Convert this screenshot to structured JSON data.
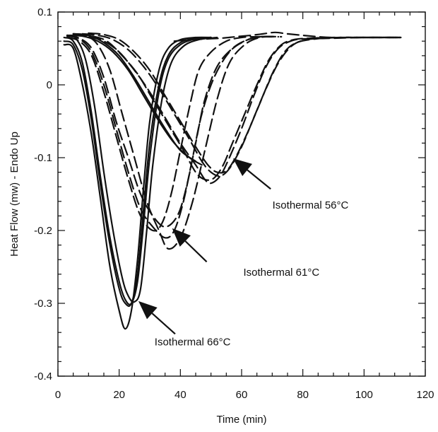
{
  "chart_data": {
    "type": "line",
    "xlabel": "Time (min)",
    "ylabel": "Heat Flow (mw) - Endo Up",
    "xlim": [
      0,
      120
    ],
    "ylim": [
      -0.4,
      0.1
    ],
    "x_ticks": [
      0,
      20,
      40,
      60,
      80,
      100,
      120
    ],
    "y_ticks": [
      0.1,
      0,
      -0.1,
      -0.2,
      -0.3,
      -0.4
    ],
    "x_tick_labels": [
      "0",
      "20",
      "40",
      "60",
      "80",
      "100",
      "120"
    ],
    "y_tick_labels": [
      "0.1",
      "0",
      "-0.1",
      "-0.2",
      "-0.3",
      "-0.4"
    ],
    "grid": false,
    "series": [
      {
        "group": "66",
        "style": "solid",
        "x": [
          2,
          5,
          8,
          11,
          14,
          17,
          20,
          22,
          24,
          26,
          28,
          30,
          33,
          36,
          40,
          45,
          50
        ],
        "y": [
          0.055,
          0.05,
          0.0,
          -0.07,
          -0.16,
          -0.25,
          -0.31,
          -0.335,
          -0.31,
          -0.24,
          -0.14,
          -0.05,
          0.02,
          0.05,
          0.062,
          0.065,
          0.065
        ]
      },
      {
        "group": "66",
        "style": "solid",
        "x": [
          2,
          5,
          8,
          11,
          14,
          17,
          20,
          22,
          24,
          26,
          28,
          30,
          33,
          36,
          40,
          45,
          50
        ],
        "y": [
          0.06,
          0.055,
          0.02,
          -0.05,
          -0.14,
          -0.22,
          -0.28,
          -0.3,
          -0.3,
          -0.26,
          -0.17,
          -0.08,
          0.0,
          0.04,
          0.058,
          0.064,
          0.065
        ]
      },
      {
        "group": "66",
        "style": "solid",
        "x": [
          2,
          5,
          8,
          11,
          14,
          17,
          20,
          22,
          24,
          26,
          28,
          30,
          33,
          36,
          40,
          45,
          50
        ],
        "y": [
          0.065,
          0.06,
          0.03,
          -0.04,
          -0.13,
          -0.21,
          -0.27,
          -0.295,
          -0.3,
          -0.27,
          -0.19,
          -0.1,
          -0.01,
          0.035,
          0.055,
          0.063,
          0.065
        ]
      },
      {
        "group": "66",
        "style": "solid",
        "x": [
          3,
          6,
          9,
          12,
          15,
          18,
          21,
          23,
          25,
          27,
          29,
          31,
          34,
          37,
          41,
          46,
          52
        ],
        "y": [
          0.068,
          0.063,
          0.035,
          -0.03,
          -0.12,
          -0.2,
          -0.265,
          -0.29,
          -0.298,
          -0.28,
          -0.2,
          -0.11,
          -0.02,
          0.03,
          0.053,
          0.062,
          0.065
        ]
      },
      {
        "group": "66-ref",
        "style": "solid",
        "x": [
          3,
          8,
          13,
          18,
          23,
          28,
          33,
          38,
          43,
          47
        ],
        "y": [
          0.068,
          0.067,
          0.06,
          0.045,
          0.02,
          -0.015,
          -0.05,
          -0.08,
          -0.1,
          -0.11
        ]
      },
      {
        "group": "66-ref",
        "style": "solid",
        "x": [
          5,
          10,
          15,
          20,
          25,
          30,
          35,
          40,
          45
        ],
        "y": [
          0.07,
          0.068,
          0.058,
          0.04,
          0.01,
          -0.025,
          -0.06,
          -0.09,
          -0.105
        ]
      },
      {
        "group": "61",
        "style": "dashed",
        "x": [
          3,
          7,
          11,
          15,
          19,
          23,
          27,
          31,
          34,
          37,
          40,
          43,
          46,
          50,
          55,
          60,
          65,
          70
        ],
        "y": [
          0.065,
          0.06,
          0.04,
          -0.01,
          -0.07,
          -0.13,
          -0.18,
          -0.2,
          -0.19,
          -0.15,
          -0.09,
          -0.03,
          0.02,
          0.045,
          0.06,
          0.065,
          0.066,
          0.066
        ]
      },
      {
        "group": "61",
        "style": "dashed",
        "x": [
          3,
          7,
          11,
          15,
          19,
          23,
          27,
          31,
          35,
          38,
          41,
          44,
          47,
          51,
          56,
          61,
          66,
          72
        ],
        "y": [
          0.067,
          0.063,
          0.045,
          0.0,
          -0.06,
          -0.12,
          -0.17,
          -0.195,
          -0.21,
          -0.2,
          -0.16,
          -0.1,
          -0.04,
          0.01,
          0.045,
          0.06,
          0.066,
          0.066
        ]
      },
      {
        "group": "61",
        "style": "dashed",
        "x": [
          3,
          7,
          11,
          15,
          19,
          23,
          27,
          31,
          35,
          39,
          42,
          45,
          48,
          52,
          57,
          62,
          67,
          73
        ],
        "y": [
          0.068,
          0.064,
          0.05,
          0.01,
          -0.05,
          -0.1,
          -0.15,
          -0.18,
          -0.195,
          -0.18,
          -0.14,
          -0.08,
          -0.02,
          0.025,
          0.05,
          0.062,
          0.066,
          0.066
        ]
      },
      {
        "group": "61",
        "style": "dashed",
        "x": [
          5,
          9,
          13,
          17,
          21,
          25,
          29,
          33,
          36,
          40,
          44,
          48,
          52,
          56,
          61,
          66,
          72
        ],
        "y": [
          0.07,
          0.068,
          0.055,
          0.02,
          -0.04,
          -0.1,
          -0.16,
          -0.2,
          -0.225,
          -0.21,
          -0.16,
          -0.09,
          -0.02,
          0.03,
          0.055,
          0.065,
          0.066
        ]
      },
      {
        "group": "56",
        "style": "dashed",
        "x": [
          5,
          10,
          15,
          20,
          25,
          30,
          35,
          40,
          45,
          48,
          50,
          53,
          56,
          60,
          64,
          68,
          72,
          76,
          80,
          90,
          100,
          112
        ],
        "y": [
          0.068,
          0.066,
          0.06,
          0.045,
          0.02,
          -0.01,
          -0.045,
          -0.08,
          -0.11,
          -0.13,
          -0.135,
          -0.125,
          -0.1,
          -0.06,
          -0.015,
          0.025,
          0.05,
          0.06,
          0.063,
          0.064,
          0.065,
          0.065
        ]
      },
      {
        "group": "56",
        "style": "dashed",
        "x": [
          6,
          11,
          16,
          21,
          26,
          31,
          36,
          41,
          45,
          48,
          51,
          54,
          57,
          61,
          65,
          69,
          73,
          77,
          82,
          90,
          100,
          112
        ],
        "y": [
          0.069,
          0.067,
          0.06,
          0.04,
          0.015,
          -0.02,
          -0.055,
          -0.09,
          -0.12,
          -0.13,
          -0.128,
          -0.11,
          -0.08,
          -0.04,
          0.0,
          0.035,
          0.055,
          0.062,
          0.064,
          0.065,
          0.065,
          0.065
        ]
      },
      {
        "group": "56",
        "style": "dashed",
        "x": [
          8,
          13,
          18,
          23,
          28,
          33,
          38,
          43,
          47,
          50,
          53,
          56,
          60,
          64,
          68,
          72,
          76,
          80,
          86,
          95,
          105,
          112
        ],
        "y": [
          0.07,
          0.068,
          0.062,
          0.048,
          0.025,
          -0.005,
          -0.04,
          -0.075,
          -0.105,
          -0.12,
          -0.125,
          -0.115,
          -0.085,
          -0.045,
          -0.005,
          0.03,
          0.052,
          0.061,
          0.064,
          0.065,
          0.065,
          0.065
        ]
      },
      {
        "group": "56",
        "style": "dashed",
        "x": [
          10,
          15,
          20,
          25,
          30,
          35,
          40,
          45,
          49,
          52,
          55,
          58,
          62,
          66,
          70,
          74,
          78,
          84,
          92,
          100,
          112
        ],
        "y": [
          0.071,
          0.069,
          0.062,
          0.045,
          0.02,
          -0.015,
          -0.05,
          -0.085,
          -0.11,
          -0.12,
          -0.118,
          -0.1,
          -0.065,
          -0.025,
          0.015,
          0.045,
          0.058,
          0.063,
          0.065,
          0.065,
          0.065
        ]
      },
      {
        "group": "56",
        "style": "dashed",
        "x": [
          38,
          43,
          48,
          53,
          58,
          63,
          67,
          71,
          75,
          80,
          85,
          90,
          100,
          112
        ],
        "y": [
          0.06,
          0.062,
          0.063,
          0.064,
          0.066,
          0.068,
          0.07,
          0.072,
          0.07,
          0.068,
          0.066,
          0.065,
          0.065,
          0.065
        ]
      }
    ],
    "annotations": [
      {
        "text": "Isothermal 56°C",
        "x": 82.5,
        "y": -0.17,
        "arrow_tail": [
          69.5,
          -0.143
        ],
        "arrow_head": [
          57.2,
          -0.101
        ]
      },
      {
        "text": "Isothermal 61°C",
        "x": 73,
        "y": -0.262,
        "arrow_tail": [
          48.6,
          -0.243
        ],
        "arrow_head": [
          37.3,
          -0.197
        ]
      },
      {
        "text": "Isothermal 66°C",
        "x": 44,
        "y": -0.358,
        "arrow_tail": [
          38.3,
          -0.342
        ],
        "arrow_head": [
          26.3,
          -0.297
        ]
      }
    ]
  }
}
